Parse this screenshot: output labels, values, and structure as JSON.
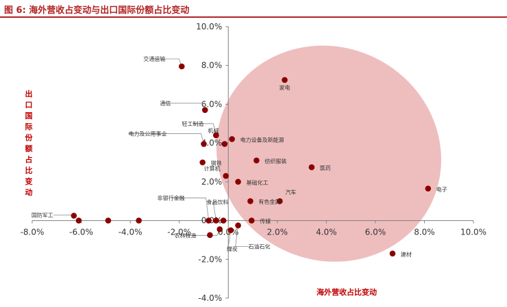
{
  "header": {
    "title": "图 6:  海外营收占变动与出口国际份额占比变动"
  },
  "chart_data": {
    "type": "scatter",
    "xlabel": "海外营收占比变动",
    "ylabel": "出口国际份额占比变动",
    "xlim": [
      -8.0,
      10.0
    ],
    "ylim": [
      -4.0,
      10.0
    ],
    "x_ticks": [
      "-8.0%",
      "-6.0%",
      "-4.0%",
      "-2.0%",
      "0.0%",
      "2.0%",
      "4.0%",
      "6.0%",
      "8.0%",
      "10.0%"
    ],
    "y_ticks": [
      "-4.0%",
      "-2.0%",
      "0.0%",
      "2.0%",
      "4.0%",
      "6.0%",
      "8.0%",
      "10.0%"
    ],
    "grid": false,
    "point_color": "#8b0000",
    "highlight_color": "#e8a5a5",
    "highlight_ellipse": {
      "cx": 4.1,
      "cy": 3.45,
      "rx": 4.35,
      "ry": 4.65,
      "rotate_deg": -62
    },
    "points": [
      {
        "label": "交通运输",
        "x": -1.9,
        "y": 7.95
      },
      {
        "label": "家电",
        "x": 2.3,
        "y": 7.25
      },
      {
        "label": "通信",
        "x": -0.95,
        "y": 5.7
      },
      {
        "label": "轻工制造",
        "x": -0.5,
        "y": 4.4
      },
      {
        "label": "机械",
        "x": -0.5,
        "y": 4.4
      },
      {
        "label": "电力及公用事业",
        "x": -1.0,
        "y": 3.95
      },
      {
        "label": "电力设备及新能源",
        "x": 0.15,
        "y": 4.2
      },
      {
        "label": "",
        "x": -0.15,
        "y": 3.95
      },
      {
        "label": "纺织服装",
        "x": 1.15,
        "y": 3.1
      },
      {
        "label": "钢铁",
        "x": -1.05,
        "y": 3.0
      },
      {
        "label": "医药",
        "x": 3.4,
        "y": 2.75
      },
      {
        "label": "计算机",
        "x": -0.1,
        "y": 2.3
      },
      {
        "label": "基础化工",
        "x": 0.4,
        "y": 2.0
      },
      {
        "label": "电子",
        "x": 8.15,
        "y": 1.65
      },
      {
        "label": "汽车",
        "x": 2.1,
        "y": 1.0
      },
      {
        "label": "有色金属",
        "x": 0.9,
        "y": 1.0
      },
      {
        "label": "国防军工",
        "x": -6.3,
        "y": 0.25
      },
      {
        "label": "",
        "x": -6.1,
        "y": 0.0
      },
      {
        "label": "",
        "x": -4.9,
        "y": 0.0
      },
      {
        "label": "",
        "x": -3.65,
        "y": 0.0
      },
      {
        "label": "非银行金融",
        "x": -0.8,
        "y": 0.0
      },
      {
        "label": "食品饮料",
        "x": -0.5,
        "y": 0.0
      },
      {
        "label": "",
        "x": -0.2,
        "y": 0.0
      },
      {
        "label": "传媒",
        "x": 0.95,
        "y": 0.0
      },
      {
        "label": "农林牧渔",
        "x": -0.35,
        "y": -0.45
      },
      {
        "label": "",
        "x": -0.75,
        "y": -0.75
      },
      {
        "label": "煤炭",
        "x": 0.1,
        "y": -0.5
      },
      {
        "label": "石油石化",
        "x": 0.4,
        "y": -0.25
      },
      {
        "label": "建材",
        "x": 6.7,
        "y": -1.7
      }
    ]
  }
}
